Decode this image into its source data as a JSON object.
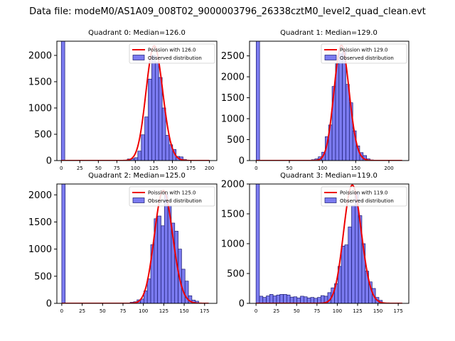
{
  "figure": {
    "suptitle": "Data file: modeM0/AS1A09_008T02_9000003796_26338cztM0_level2_quad_clean.evt"
  },
  "colors": {
    "bars": "#7b7bf0",
    "bar_edge": "#1a1a70",
    "curve": "#ee0000"
  },
  "chart_data": [
    {
      "type": "bar",
      "title": "Quadrant 0: Median=126.0",
      "legend": {
        "placement": "top-right",
        "entries": [
          "Poission with 126.0",
          "Observed distribution"
        ]
      },
      "xlim": [
        -6,
        210
      ],
      "ylim": [
        0,
        2270
      ],
      "xticks": [
        0,
        25,
        50,
        75,
        100,
        125,
        150,
        175,
        200
      ],
      "yticks": [
        0,
        500,
        1000,
        1500,
        2000
      ],
      "mu": 126,
      "poisson_peak": 2180,
      "curve_range": [
        0,
        200
      ],
      "bin_width": 4.7,
      "bins": [
        [
          0,
          2270
        ],
        [
          89.2,
          30
        ],
        [
          93.9,
          35
        ],
        [
          98.6,
          55
        ],
        [
          103.3,
          180
        ],
        [
          108,
          490
        ],
        [
          112.7,
          830
        ],
        [
          117.4,
          1550
        ],
        [
          122.1,
          2000
        ],
        [
          126.8,
          1870
        ],
        [
          131.5,
          1580
        ],
        [
          136.2,
          1000
        ],
        [
          140.9,
          480
        ],
        [
          145.6,
          300
        ],
        [
          150.3,
          210
        ],
        [
          155,
          80
        ],
        [
          159.7,
          70
        ],
        [
          164.4,
          20
        ],
        [
          169.1,
          5
        ]
      ]
    },
    {
      "type": "bar",
      "title": "Quadrant 1: Median=129.0",
      "legend": {
        "placement": "top-right",
        "entries": [
          "Poission with 129.0",
          "Observed distribution"
        ]
      },
      "xlim": [
        -10,
        230
      ],
      "ylim": [
        0,
        2850
      ],
      "xticks": [
        0,
        50,
        100,
        150,
        200
      ],
      "yticks": [
        0,
        500,
        1000,
        1500,
        2000,
        2500
      ],
      "mu": 129,
      "poisson_peak": 2750,
      "curve_range": [
        0,
        220
      ],
      "bin_width": 5.2,
      "bins": [
        [
          0,
          2850
        ],
        [
          83.2,
          20
        ],
        [
          88.4,
          40
        ],
        [
          93.6,
          90
        ],
        [
          98.8,
          200
        ],
        [
          104,
          570
        ],
        [
          109.2,
          850
        ],
        [
          114.4,
          1770
        ],
        [
          119.6,
          2310
        ],
        [
          124.8,
          2550
        ],
        [
          130,
          2600
        ],
        [
          135.2,
          1820
        ],
        [
          140.4,
          1380
        ],
        [
          145.6,
          710
        ],
        [
          150.8,
          350
        ],
        [
          156,
          190
        ],
        [
          161.2,
          120
        ],
        [
          166.4,
          40
        ],
        [
          171.6,
          15
        ]
      ]
    },
    {
      "type": "bar",
      "title": "Quadrant 2: Median=125.0",
      "legend": {
        "placement": "top-right",
        "entries": [
          "Poission with 125.0",
          "Observed distribution"
        ]
      },
      "xlim": [
        -6,
        190
      ],
      "ylim": [
        0,
        2200
      ],
      "xticks": [
        0,
        25,
        50,
        75,
        100,
        125,
        150,
        175
      ],
      "yticks": [
        0,
        500,
        1000,
        1500,
        2000
      ],
      "mu": 125,
      "poisson_peak": 2080,
      "curve_range": [
        0,
        180
      ],
      "bin_width": 4.2,
      "bins": [
        [
          0,
          2200
        ],
        [
          83.8,
          20
        ],
        [
          88,
          30
        ],
        [
          92.2,
          65
        ],
        [
          96.4,
          80
        ],
        [
          100.6,
          230
        ],
        [
          104.8,
          450
        ],
        [
          109,
          1080
        ],
        [
          113.2,
          1560
        ],
        [
          117.4,
          1610
        ],
        [
          121.6,
          1430
        ],
        [
          125.8,
          2010
        ],
        [
          130,
          1800
        ],
        [
          134.2,
          1480
        ],
        [
          138.4,
          1330
        ],
        [
          142.6,
          1000
        ],
        [
          146.8,
          630
        ],
        [
          151,
          410
        ],
        [
          155.2,
          140
        ],
        [
          159.4,
          60
        ],
        [
          163.6,
          40
        ]
      ]
    },
    {
      "type": "bar",
      "title": "Quadrant 3: Median=119.0",
      "legend": {
        "placement": "top-right",
        "entries": [
          "Poission with 119.0",
          "Observed distribution"
        ]
      },
      "xlim": [
        -8,
        188
      ],
      "ylim": [
        0,
        2000
      ],
      "xticks": [
        0,
        25,
        50,
        75,
        100,
        125,
        150,
        175
      ],
      "yticks": [
        0,
        500,
        1000,
        1500,
        2000
      ],
      "mu": 119,
      "poisson_peak": 1980,
      "curve_range": [
        0,
        180
      ],
      "bin_width": 4.2,
      "bins": [
        [
          0,
          2000
        ],
        [
          4.2,
          120
        ],
        [
          8.4,
          100
        ],
        [
          12.6,
          125
        ],
        [
          16.8,
          150
        ],
        [
          21,
          125
        ],
        [
          25.2,
          140
        ],
        [
          29.4,
          150
        ],
        [
          33.6,
          150
        ],
        [
          37.8,
          140
        ],
        [
          42,
          105
        ],
        [
          46.2,
          110
        ],
        [
          50.4,
          90
        ],
        [
          54.6,
          120
        ],
        [
          58.8,
          110
        ],
        [
          63,
          90
        ],
        [
          67.2,
          100
        ],
        [
          71.4,
          85
        ],
        [
          75.6,
          100
        ],
        [
          79.8,
          130
        ],
        [
          84,
          120
        ],
        [
          88.2,
          180
        ],
        [
          92.4,
          260
        ],
        [
          96.6,
          330
        ],
        [
          100.8,
          620
        ],
        [
          105,
          960
        ],
        [
          109.2,
          980
        ],
        [
          113.4,
          1280
        ],
        [
          117.6,
          1640
        ],
        [
          121.8,
          1860
        ],
        [
          126,
          1470
        ],
        [
          130.2,
          1000
        ],
        [
          134.4,
          540
        ],
        [
          138.6,
          360
        ],
        [
          142.8,
          250
        ],
        [
          147,
          100
        ],
        [
          151.2,
          50
        ]
      ]
    }
  ]
}
